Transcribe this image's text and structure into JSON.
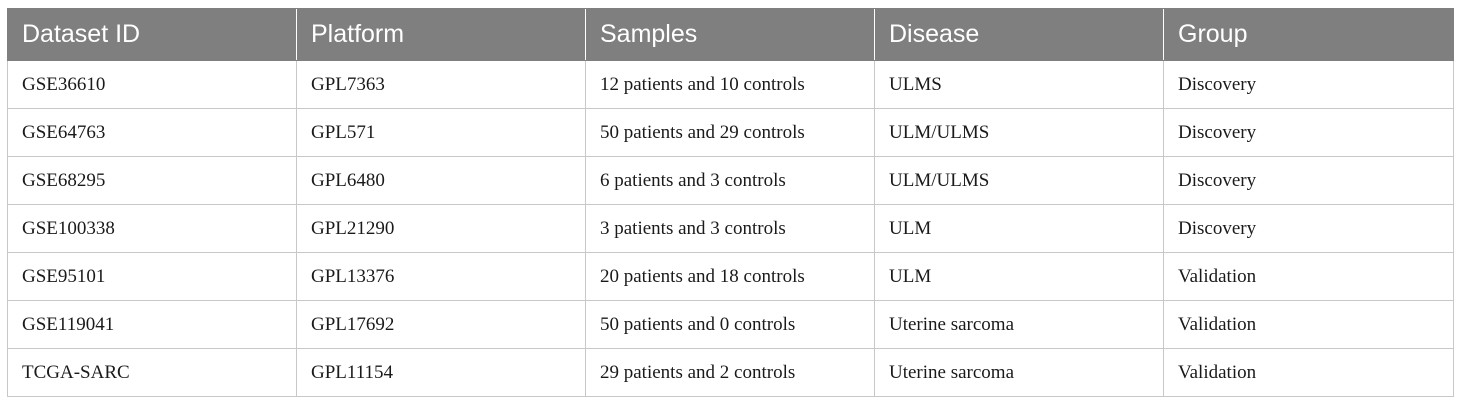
{
  "table": {
    "headers": [
      "Dataset ID",
      "Platform",
      "Samples",
      "Disease",
      "Group"
    ],
    "rows": [
      [
        "GSE36610",
        "GPL7363",
        "12 patients and 10 controls",
        "ULMS",
        "Discovery"
      ],
      [
        "GSE64763",
        "GPL571",
        "50 patients and 29 controls",
        "ULM/ULMS",
        "Discovery"
      ],
      [
        "GSE68295",
        "GPL6480",
        "6 patients and 3 controls",
        "ULM/ULMS",
        "Discovery"
      ],
      [
        "GSE100338",
        "GPL21290",
        "3 patients and 3 controls",
        "ULM",
        "Discovery"
      ],
      [
        "GSE95101",
        "GPL13376",
        "20 patients and 18 controls",
        "ULM",
        "Validation"
      ],
      [
        "GSE119041",
        "GPL17692",
        "50 patients and 0 controls",
        "Uterine sarcoma",
        "Validation"
      ],
      [
        "TCGA-SARC",
        "GPL11154",
        "29 patients and 2 controls",
        "Uterine sarcoma",
        "Validation"
      ]
    ]
  },
  "colors": {
    "header_background": "#7f7f7f",
    "header_text": "#ffffff",
    "grid_line": "#c8c8c8"
  }
}
